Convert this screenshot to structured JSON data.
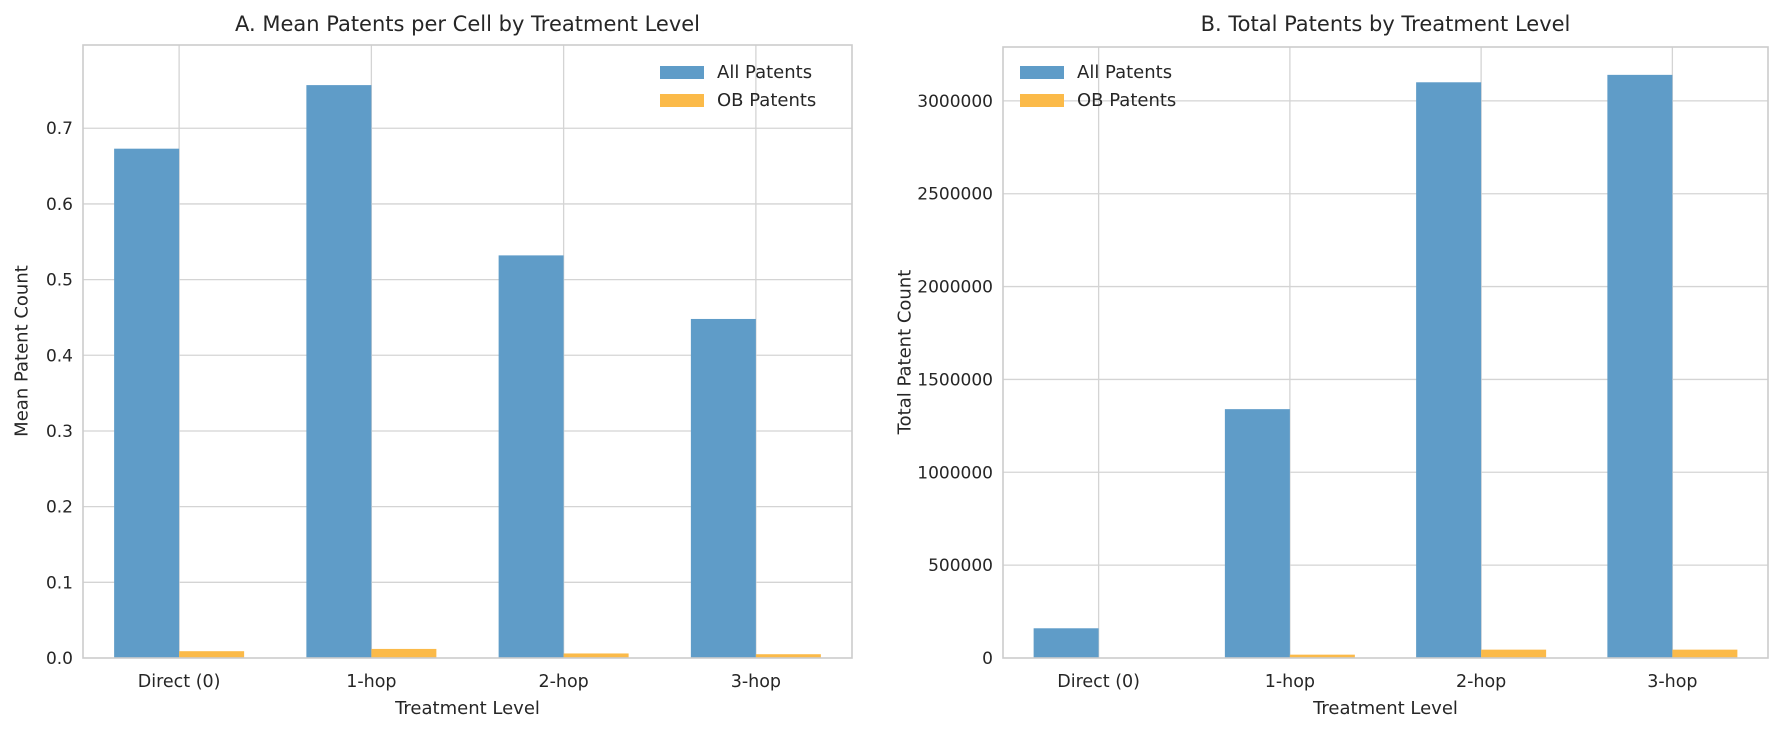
{
  "figure": {
    "background": "#ffffff",
    "text_color": "#262626",
    "grid_color": "#d4d4d4",
    "spine_color": "#cccccc"
  },
  "legend": {
    "items": [
      {
        "label": "All Patents",
        "color": "#5F9CC8"
      },
      {
        "label": "OB Patents",
        "color": "#FBBA49"
      }
    ]
  },
  "chart_data": [
    {
      "id": "panel-a",
      "type": "bar",
      "title": "A. Mean Patents per Cell by Treatment Level",
      "xlabel": "Treatment Level",
      "ylabel": "Mean Patent Count",
      "categories": [
        "Direct (0)",
        "1-hop",
        "2-hop",
        "3-hop"
      ],
      "series": [
        {
          "name": "All Patents",
          "color": "#5F9CC8",
          "values": [
            0.673,
            0.757,
            0.532,
            0.448
          ]
        },
        {
          "name": "OB Patents",
          "color": "#FBBA49",
          "values": [
            0.009,
            0.012,
            0.006,
            0.005
          ]
        }
      ],
      "ylim": [
        0,
        0.81
      ],
      "yticks": [
        0.0,
        0.1,
        0.2,
        0.3,
        0.4,
        0.5,
        0.6,
        0.7
      ],
      "ytick_labels": [
        "0.0",
        "0.1",
        "0.2",
        "0.3",
        "0.4",
        "0.5",
        "0.6",
        "0.7"
      ],
      "grid": true,
      "legend_position": "top-right"
    },
    {
      "id": "panel-b",
      "type": "bar",
      "title": "B. Total Patents by Treatment Level",
      "xlabel": "Treatment Level",
      "ylabel": "Total Patent Count",
      "categories": [
        "Direct (0)",
        "1-hop",
        "2-hop",
        "3-hop"
      ],
      "series": [
        {
          "name": "All Patents",
          "color": "#5F9CC8",
          "values": [
            160000,
            1340000,
            3100000,
            3140000
          ]
        },
        {
          "name": "OB Patents",
          "color": "#FBBA49",
          "values": [
            2000,
            18000,
            45000,
            45000
          ]
        }
      ],
      "ylim": [
        0,
        3290000
      ],
      "yticks": [
        0,
        500000,
        1000000,
        1500000,
        2000000,
        2500000,
        3000000
      ],
      "ytick_labels": [
        "0",
        "500000",
        "1000000",
        "1500000",
        "2000000",
        "2500000",
        "3000000"
      ],
      "grid": true,
      "legend_position": "top-left"
    }
  ]
}
